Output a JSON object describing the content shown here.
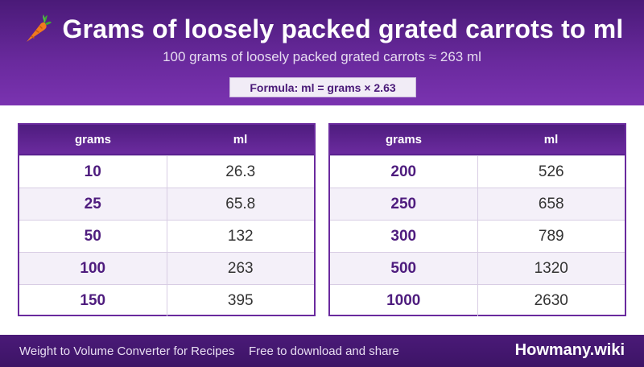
{
  "header": {
    "title": "Grams of loosely packed grated carrots to ml",
    "subtitle": "100 grams of loosely packed grated carrots ≈ 263 ml",
    "formula": "Formula: ml = grams × 2.63",
    "icon": "carrot-icon"
  },
  "tables": [
    {
      "headers": {
        "grams": "grams",
        "ml": "ml"
      },
      "rows": [
        {
          "grams": "10",
          "ml": "26.3"
        },
        {
          "grams": "25",
          "ml": "65.8"
        },
        {
          "grams": "50",
          "ml": "132"
        },
        {
          "grams": "100",
          "ml": "263"
        },
        {
          "grams": "150",
          "ml": "395"
        }
      ]
    },
    {
      "headers": {
        "grams": "grams",
        "ml": "ml"
      },
      "rows": [
        {
          "grams": "200",
          "ml": "526"
        },
        {
          "grams": "250",
          "ml": "658"
        },
        {
          "grams": "300",
          "ml": "789"
        },
        {
          "grams": "500",
          "ml": "1320"
        },
        {
          "grams": "1000",
          "ml": "2630"
        }
      ]
    }
  ],
  "footer": {
    "left": "Weight to Volume Converter for Recipes",
    "middle": "Free to download and share",
    "brand": "Howmany.wiki"
  },
  "colors": {
    "purple_dark": "#4a1a78",
    "purple": "#6a2a9e",
    "accent_text": "#4e1c7e"
  }
}
